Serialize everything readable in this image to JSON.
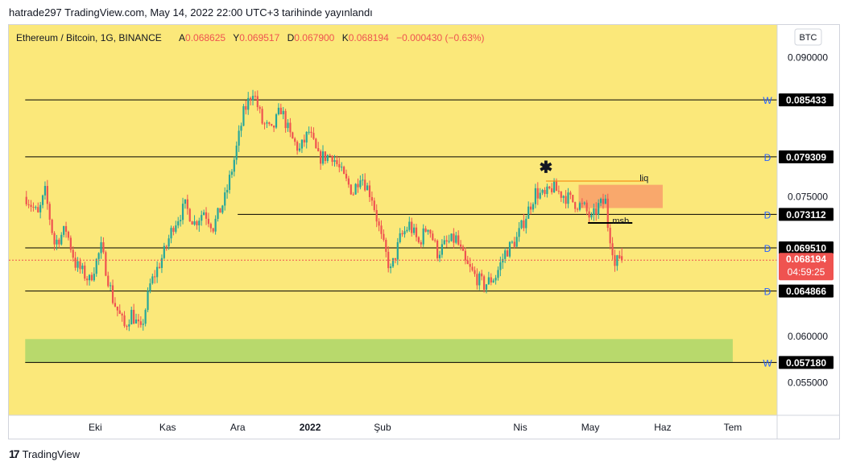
{
  "header": {
    "publish_line": "hatrade297 TradingView.com, May 14, 2022 22:00 UTC+3 tarihinde yayınlandı"
  },
  "legend": {
    "symbol": "Ethereum / Bitcoin, 1G, BINANCE",
    "open_label": "A",
    "open": "0.068625",
    "high_label": "Y",
    "high": "0.069517",
    "low_label": "D",
    "low": "0.067900",
    "close_label": "K",
    "close": "0.068194",
    "change": "−0.000430 (−0.63%)"
  },
  "currency_button": "BTC",
  "footer": {
    "brand": "TradingView"
  },
  "colors": {
    "chart_bg": "#fbe87a",
    "up": "#26a69a",
    "down": "#ef5350",
    "green_zone": "#b8d96c",
    "orange_zone": "#f9a86c",
    "level_line": "#000000",
    "price_tag": "#ef5350"
  },
  "chart_data": {
    "type": "candlestick",
    "title": "Ethereum / Bitcoin, 1G, BINANCE",
    "ylim": [
      0.0515,
      0.0935
    ],
    "y_ticks": [
      "0.090000",
      "0.075000",
      "0.060000",
      "0.055000"
    ],
    "x_ticks": [
      {
        "label": "Eki",
        "date": "2021-10-01"
      },
      {
        "label": "Kas",
        "date": "2021-11-01"
      },
      {
        "label": "Ara",
        "date": "2021-12-01"
      },
      {
        "label": "2022",
        "date": "2022-01-01",
        "bold": true
      },
      {
        "label": "Şub",
        "date": "2022-02-01"
      },
      {
        "label": "Nis",
        "date": "2022-04-01"
      },
      {
        "label": "May",
        "date": "2022-05-01"
      },
      {
        "label": "Haz",
        "date": "2022-06-01"
      },
      {
        "label": "Tem",
        "date": "2022-07-01"
      }
    ],
    "levels": [
      {
        "value": 0.085433,
        "label": "0.085433",
        "tag": "W",
        "from_date": "2021-09-01"
      },
      {
        "value": 0.079309,
        "label": "0.079309",
        "tag": "D",
        "from_date": "2021-09-01"
      },
      {
        "value": 0.073112,
        "label": "0.073112",
        "tag": "D",
        "from_date": "2021-12-01"
      },
      {
        "value": 0.06951,
        "label": "0.069510",
        "tag": "D",
        "from_date": "2021-09-01"
      },
      {
        "value": 0.064866,
        "label": "0.064866",
        "tag": "D",
        "from_date": "2021-09-01"
      },
      {
        "value": 0.05718,
        "label": "0.057180",
        "tag": "W",
        "from_date": "2021-09-01"
      }
    ],
    "last_price": {
      "value": 0.068194,
      "label": "0.068194",
      "countdown": "04:59:25"
    },
    "zones": [
      {
        "name": "demand",
        "from_date": "2021-09-01",
        "to_date": "2022-07-01",
        "y_low": 0.0572,
        "y_high": 0.0597,
        "color": "#b8d96c"
      },
      {
        "name": "supply",
        "from_date": "2022-04-26",
        "to_date": "2022-06-01",
        "y_low": 0.0738,
        "y_high": 0.0763,
        "color": "#f9a86c"
      }
    ],
    "annotations": [
      {
        "text": "liq",
        "date": "2022-05-24",
        "value": 0.0767
      },
      {
        "text": "msb",
        "date": "2022-05-14",
        "value": 0.0721
      },
      {
        "text": "✱",
        "date": "2022-04-12",
        "value": 0.0776
      }
    ],
    "liq_line": {
      "from_date": "2022-04-12",
      "to_date": "2022-05-24",
      "value": 0.0767
    },
    "msb_line": {
      "from_date": "2022-04-30",
      "to_date": "2022-05-19",
      "value": 0.0722
    },
    "anchors": [
      [
        "2021-09-01",
        0.075
      ],
      [
        "2021-09-06",
        0.073
      ],
      [
        "2021-09-09",
        0.0755
      ],
      [
        "2021-09-13",
        0.07
      ],
      [
        "2021-09-18",
        0.0715
      ],
      [
        "2021-09-22",
        0.0678
      ],
      [
        "2021-09-28",
        0.066
      ],
      [
        "2021-10-03",
        0.0695
      ],
      [
        "2021-10-08",
        0.064
      ],
      [
        "2021-10-13",
        0.061
      ],
      [
        "2021-10-16",
        0.0625
      ],
      [
        "2021-10-20",
        0.0605
      ],
      [
        "2021-10-24",
        0.0655
      ],
      [
        "2021-10-30",
        0.069
      ],
      [
        "2021-11-03",
        0.072
      ],
      [
        "2021-11-08",
        0.074
      ],
      [
        "2021-11-12",
        0.0722
      ],
      [
        "2021-11-16",
        0.0735
      ],
      [
        "2021-11-20",
        0.0718
      ],
      [
        "2021-11-25",
        0.0748
      ],
      [
        "2021-11-29",
        0.079
      ],
      [
        "2021-12-03",
        0.084
      ],
      [
        "2021-12-07",
        0.0865
      ],
      [
        "2021-12-11",
        0.083
      ],
      [
        "2021-12-15",
        0.082
      ],
      [
        "2021-12-19",
        0.0845
      ],
      [
        "2021-12-23",
        0.0815
      ],
      [
        "2021-12-27",
        0.08
      ],
      [
        "2021-12-31",
        0.082
      ],
      [
        "2022-01-04",
        0.0792
      ],
      [
        "2022-01-10",
        0.0795
      ],
      [
        "2022-01-15",
        0.077
      ],
      [
        "2022-01-19",
        0.0755
      ],
      [
        "2022-01-22",
        0.0775
      ],
      [
        "2022-01-27",
        0.075
      ],
      [
        "2022-01-31",
        0.0705
      ],
      [
        "2022-02-04",
        0.067
      ],
      [
        "2022-02-08",
        0.0705
      ],
      [
        "2022-02-12",
        0.072
      ],
      [
        "2022-02-16",
        0.07
      ],
      [
        "2022-02-20",
        0.072
      ],
      [
        "2022-02-24",
        0.069
      ],
      [
        "2022-02-28",
        0.07
      ],
      [
        "2022-03-04",
        0.0705
      ],
      [
        "2022-03-08",
        0.0678
      ],
      [
        "2022-03-12",
        0.0665
      ],
      [
        "2022-03-16",
        0.0655
      ],
      [
        "2022-03-21",
        0.0665
      ],
      [
        "2022-03-25",
        0.069
      ],
      [
        "2022-03-30",
        0.0705
      ],
      [
        "2022-04-03",
        0.073
      ],
      [
        "2022-04-07",
        0.0755
      ],
      [
        "2022-04-11",
        0.075
      ],
      [
        "2022-04-14",
        0.076
      ],
      [
        "2022-04-19",
        0.0752
      ],
      [
        "2022-04-23",
        0.0745
      ],
      [
        "2022-04-28",
        0.0738
      ],
      [
        "2022-05-01",
        0.0725
      ],
      [
        "2022-05-04",
        0.074
      ],
      [
        "2022-05-07",
        0.0745
      ],
      [
        "2022-05-08",
        0.072
      ],
      [
        "2022-05-10",
        0.0695
      ],
      [
        "2022-05-11",
        0.0675
      ],
      [
        "2022-05-13",
        0.0686
      ],
      [
        "2022-05-14",
        0.0682
      ]
    ],
    "date_range": [
      "2021-08-25",
      "2022-07-20"
    ]
  }
}
